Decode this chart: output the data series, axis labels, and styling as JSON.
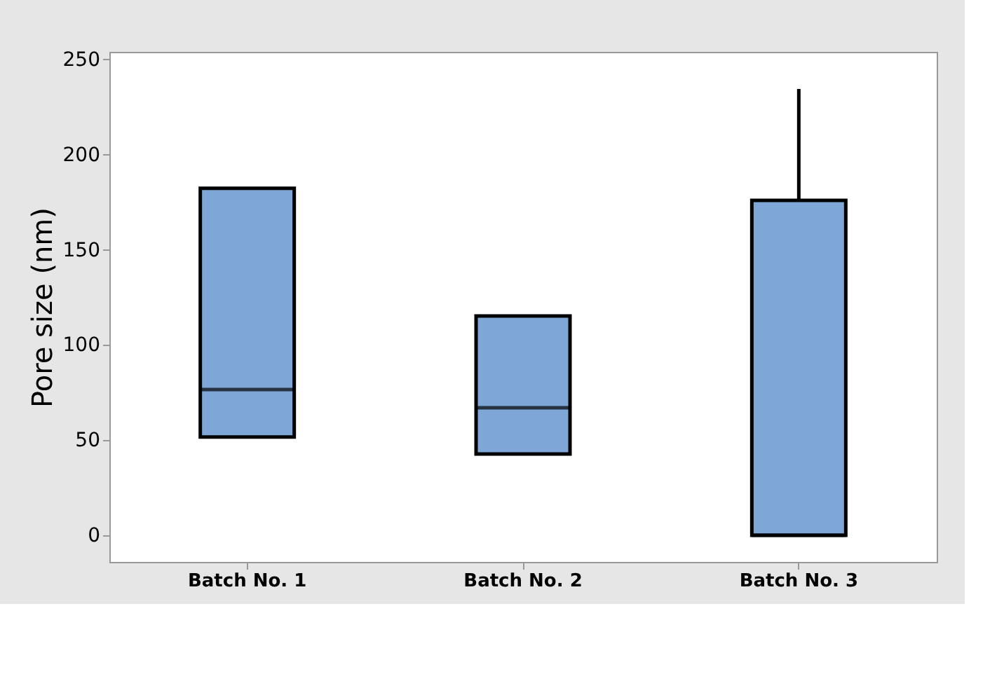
{
  "chart_data": {
    "type": "box",
    "ylabel": "Pore size (nm)",
    "categories": [
      "Batch No. 1",
      "Batch No. 2",
      "Batch No. 3"
    ],
    "series": [
      {
        "color": "#7ea7d8",
        "boxes": [
          {
            "low": 51.6,
            "q1": 51.6,
            "median": 76.6,
            "q3": 182.3,
            "high": 182.3
          },
          {
            "low": 42.7,
            "q1": 42.7,
            "median": 67,
            "q3": 115.2,
            "high": 115.2
          },
          {
            "low": 0,
            "q1": 0,
            "median": 0,
            "q3": 176,
            "high": 234.5
          }
        ]
      }
    ],
    "ylim": [
      -14,
      254
    ],
    "yticks": [
      0,
      50,
      100,
      150,
      200,
      250
    ]
  }
}
